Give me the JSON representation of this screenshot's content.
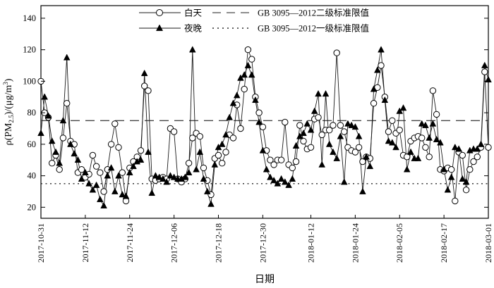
{
  "figure": {
    "background": "#ffffff",
    "plot_border_color": "#000000"
  },
  "chart_data": {
    "type": "line",
    "title": "",
    "xlabel": "日期",
    "ylabel": "ρ(PM2.5)/(μg/m³)",
    "ylabel_parts": [
      {
        "text": "ρ(PM",
        "style": "normal"
      },
      {
        "text": "2.5",
        "style": "sub"
      },
      {
        "text": ")/(μg/m",
        "style": "normal"
      },
      {
        "text": "3",
        "style": "sup"
      },
      {
        "text": ")",
        "style": "normal"
      }
    ],
    "ylim": [
      13,
      148
    ],
    "yticks": [
      20,
      40,
      60,
      80,
      100,
      120,
      140
    ],
    "x_tick_labels": [
      "2017-10-31",
      "2017-11-12",
      "2017-11-24",
      "2017-12-06",
      "2017-12-18",
      "2017-12-30",
      "2018-01-12",
      "2018-01-24",
      "2018-02-05",
      "2018-02-17",
      "2018-03-01"
    ],
    "x_tick_positions": [
      0,
      12,
      24,
      36,
      48,
      60,
      73,
      85,
      97,
      109,
      121
    ],
    "n_points": 122,
    "grid": false,
    "legend_position": "top-center",
    "series": [
      {
        "name": "白天",
        "marker": "open-circle",
        "line_color": "#1a1a1a",
        "values": [
          100,
          80,
          77,
          48,
          53,
          44,
          64,
          86,
          62,
          60,
          42,
          44,
          39,
          41,
          53,
          46,
          42,
          30,
          44,
          60,
          73,
          58,
          42,
          24,
          45,
          49,
          52,
          56,
          97,
          94,
          38,
          37,
          38,
          39,
          38,
          70,
          68,
          38,
          36,
          38,
          48,
          64,
          67,
          65,
          45,
          37,
          28,
          51,
          53,
          48,
          55,
          66,
          64,
          85,
          70,
          95,
          120,
          114,
          90,
          80,
          71,
          56,
          50,
          47,
          50,
          50,
          74,
          47,
          45,
          49,
          72,
          62,
          57,
          58,
          76,
          77,
          66,
          69,
          69,
          72,
          118,
          72,
          68,
          58,
          56,
          55,
          58,
          49,
          52,
          51,
          86,
          96,
          110,
          90,
          68,
          75,
          67,
          69,
          53,
          52,
          62,
          64,
          65,
          64,
          58,
          52,
          94,
          79,
          44,
          43,
          45,
          44,
          24,
          55,
          53,
          31,
          44,
          49,
          52,
          58,
          106,
          58
        ]
      },
      {
        "name": "夜晚",
        "marker": "filled-triangle",
        "line_color": "#1a1a1a",
        "values": [
          67,
          90,
          78,
          62,
          55,
          48,
          75,
          115,
          60,
          54,
          50,
          38,
          42,
          35,
          31,
          34,
          25,
          21,
          40,
          45,
          30,
          40,
          28,
          27,
          42,
          46,
          49,
          50,
          105,
          55,
          29,
          40,
          39,
          38,
          36,
          40,
          39,
          38,
          38,
          39,
          42,
          120,
          44,
          55,
          38,
          30,
          22,
          47,
          58,
          60,
          66,
          77,
          86,
          91,
          102,
          104,
          110,
          104,
          88,
          74,
          56,
          44,
          39,
          37,
          35,
          38,
          36,
          34,
          38,
          59,
          65,
          67,
          73,
          69,
          81,
          92,
          47,
          92,
          60,
          55,
          51,
          65,
          36,
          73,
          72,
          71,
          65,
          30,
          52,
          46,
          95,
          107,
          120,
          88,
          62,
          61,
          58,
          81,
          83,
          44,
          55,
          51,
          51,
          73,
          72,
          64,
          73,
          63,
          61,
          44,
          31,
          39,
          58,
          57,
          38,
          36,
          56,
          57,
          57,
          60,
          110,
          101
        ]
      }
    ],
    "reference_lines": [
      {
        "label": "GB 3095—2012二级标准限值",
        "value": 75,
        "style": "dashed"
      },
      {
        "label": "GB 3095—2012一级标准限值",
        "value": 35,
        "style": "dotted"
      }
    ]
  }
}
